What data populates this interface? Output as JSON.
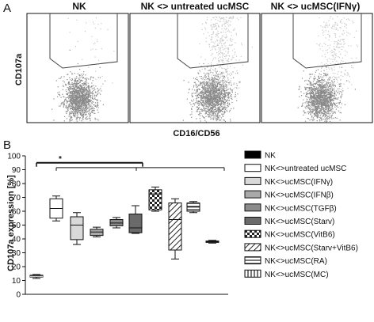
{
  "panels": {
    "a": "A",
    "b": "B"
  },
  "flow_plots": [
    {
      "title": "NK",
      "gate_fraction": 0.03
    },
    {
      "title": "NK <> untreated ucMSC",
      "gate_fraction": 0.3
    },
    {
      "title": "NK <> ucMSC(IFNγ)",
      "gate_fraction": 0.2
    }
  ],
  "flow_axes": {
    "ylabel": "CD107a",
    "xlabel": "CD16/CD56"
  },
  "colors": {
    "dots_dark": "#8a8a8a",
    "dots_light": "#c8c8c8",
    "ink": "#111111",
    "gate": "#444444"
  },
  "chart_data": {
    "type": "box",
    "ylabel": "CD107a expression [%]",
    "ylim": [
      0,
      100
    ],
    "yticks": [
      0,
      10,
      20,
      30,
      40,
      50,
      60,
      70,
      80,
      90,
      100
    ],
    "significance": {
      "label": "*"
    },
    "series": [
      {
        "name": "NK",
        "min": 11.5,
        "q1": 12.5,
        "median": 13,
        "q3": 13.8,
        "max": 14.3,
        "fill": "#000000",
        "pattern": "solid"
      },
      {
        "name": "NK<>untreated ucMSC",
        "min": 53,
        "q1": 55,
        "median": 62,
        "q3": 69,
        "max": 71,
        "fill": "#ffffff",
        "pattern": "solid"
      },
      {
        "name": "NK<>ucMSC(IFNγ)",
        "min": 36,
        "q1": 39.5,
        "median": 50,
        "q3": 56,
        "max": 59,
        "fill": "#d9d9d9",
        "pattern": "solid"
      },
      {
        "name": "NK<>ucMSC(IFNβ)",
        "min": 41.5,
        "q1": 42.5,
        "median": 45,
        "q3": 47,
        "max": 48.5,
        "fill": "#a9a9a9",
        "pattern": "solid"
      },
      {
        "name": "NK<>ucMSC(TGFβ)",
        "min": 48,
        "q1": 49.5,
        "median": 51.5,
        "q3": 54,
        "max": 55.5,
        "fill": "#8c8c8c",
        "pattern": "solid"
      },
      {
        "name": "NK<>ucMSC(Starv)",
        "min": 44,
        "q1": 44.5,
        "median": 48,
        "q3": 58,
        "max": 64,
        "fill": "#6a6a6a",
        "pattern": "solid"
      },
      {
        "name": "NK<>ucMSC(VitB6)",
        "min": 60,
        "q1": 61,
        "median": 72.5,
        "q3": 75.5,
        "max": 77.5,
        "fill": "#ffffff",
        "pattern": "checker"
      },
      {
        "name": "NK<>ucMSC(Starv+VitB6)",
        "min": 25.5,
        "q1": 32,
        "median": 54,
        "q3": 66,
        "max": 69,
        "fill": "#ffffff",
        "pattern": "diag"
      },
      {
        "name": "NK<>ucMSC(RA)",
        "min": 59,
        "q1": 60,
        "median": 63,
        "q3": 66,
        "max": 67,
        "fill": "#ffffff",
        "pattern": "horiz"
      },
      {
        "name": "NK<>ucMSC(MC)",
        "min": 37,
        "q1": 37.5,
        "median": 38,
        "q3": 38.5,
        "max": 39,
        "fill": "#ffffff",
        "pattern": "vert"
      }
    ]
  }
}
